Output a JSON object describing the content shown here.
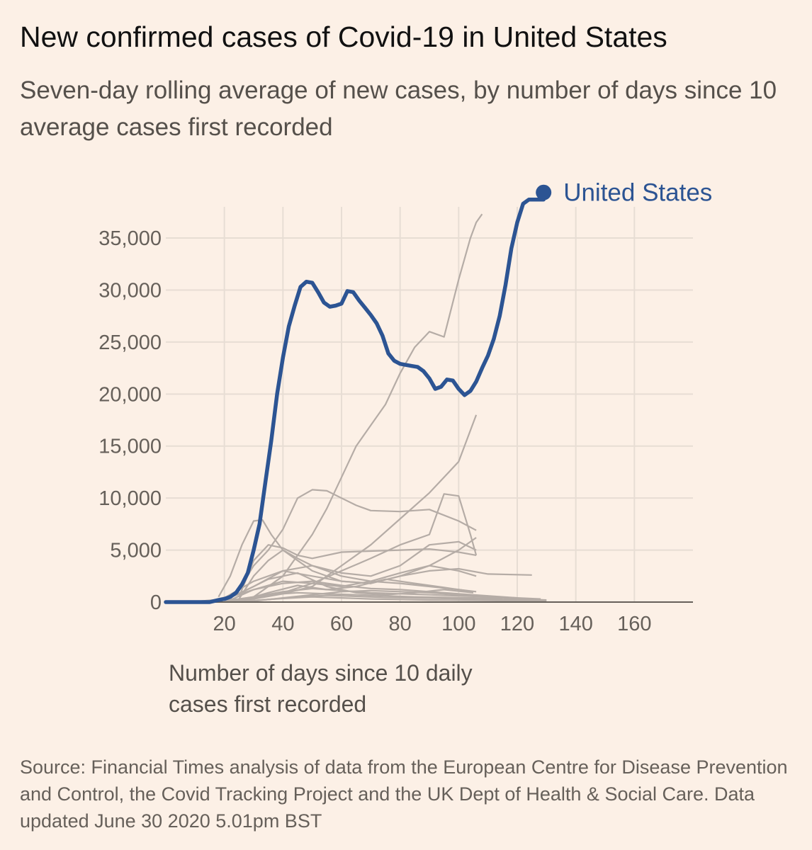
{
  "header": {
    "title": "New confirmed cases of Covid-19 in United States",
    "subtitle": "Seven-day rolling average of new cases, by number of days since 10 average cases first recorded"
  },
  "footer": {
    "source": "Source: Financial Times analysis of data from the European Centre for Disease Prevention and Control, the Covid Tracking Project and the UK Dept of Health & Social Care. Data updated June 30 2020 5.01pm BST"
  },
  "colors": {
    "background": "#fcf0e6",
    "highlight": "#2c5493",
    "other_countries": "#b5aca6",
    "grid": "#e7ddd4",
    "axis": "#66605a"
  },
  "chart_data": {
    "type": "line",
    "title": "New confirmed cases of Covid-19 in United States",
    "subtitle": "Seven-day rolling average of new cases, by number of days since 10 average cases first recorded",
    "xlabel": "Number of days since 10 daily cases first recorded",
    "ylabel": "",
    "xlim": [
      0,
      180
    ],
    "ylim": [
      0,
      38000
    ],
    "xticks": [
      20,
      40,
      60,
      80,
      100,
      120,
      140,
      160
    ],
    "xtick_labels": [
      "20",
      "40",
      "60",
      "80",
      "100",
      "120",
      "140",
      "160"
    ],
    "yticks": [
      0,
      5000,
      10000,
      15000,
      20000,
      25000,
      30000,
      35000
    ],
    "ytick_labels": [
      "0",
      "5,000",
      "10,000",
      "15,000",
      "20,000",
      "25,000",
      "30,000",
      "35,000"
    ],
    "grid": true,
    "highlight": {
      "name": "United States",
      "x": [
        0,
        15,
        18,
        20,
        22,
        24,
        26,
        28,
        30,
        32,
        34,
        36,
        38,
        40,
        42,
        44,
        46,
        48,
        50,
        52,
        54,
        56,
        58,
        60,
        62,
        64,
        66,
        68,
        70,
        72,
        74,
        76,
        78,
        80,
        82,
        84,
        86,
        88,
        90,
        92,
        94,
        96,
        98,
        100,
        102,
        104,
        106,
        108,
        110,
        112,
        114,
        116,
        118,
        120,
        122,
        124,
        126,
        128,
        129
      ],
      "y": [
        0,
        0,
        200,
        300,
        500,
        900,
        1700,
        2800,
        5000,
        7500,
        11500,
        15500,
        20000,
        23500,
        26500,
        28500,
        30300,
        30800,
        30700,
        29800,
        28800,
        28400,
        28500,
        28700,
        29900,
        29800,
        29000,
        28300,
        27600,
        26800,
        25600,
        23900,
        23200,
        22900,
        22800,
        22700,
        22600,
        22200,
        21500,
        20500,
        20700,
        21400,
        21300,
        20500,
        19900,
        20300,
        21200,
        22500,
        23700,
        25300,
        27500,
        30500,
        34000,
        36500,
        38300,
        38700,
        38700,
        38700,
        38700
      ]
    },
    "background_series": [
      {
        "x": [
          30,
          35,
          40,
          45,
          50,
          55,
          60,
          65,
          70,
          75,
          80,
          85,
          90,
          95,
          100,
          104,
          106,
          108
        ],
        "y": [
          500,
          1500,
          2500,
          4500,
          6500,
          9000,
          12000,
          15000,
          17000,
          19000,
          22000,
          24500,
          26000,
          25500,
          31000,
          35000,
          36500,
          37300
        ]
      },
      {
        "x": [
          20,
          30,
          40,
          50,
          55,
          60,
          70,
          80,
          90,
          100,
          106
        ],
        "y": [
          100,
          300,
          800,
          1500,
          2500,
          3500,
          5500,
          8000,
          10500,
          13500,
          18000
        ]
      },
      {
        "x": [
          20,
          25,
          30,
          35,
          40,
          45,
          50,
          55,
          60,
          65,
          70,
          80,
          90,
          100,
          106
        ],
        "y": [
          200,
          1200,
          3500,
          5000,
          7000,
          10000,
          10800,
          10700,
          10000,
          9300,
          8800,
          8700,
          8900,
          7800,
          6900
        ]
      },
      {
        "x": [
          18,
          22,
          26,
          30,
          33,
          36,
          40,
          45,
          50,
          55,
          60,
          70,
          80,
          90,
          100,
          106
        ],
        "y": [
          500,
          2500,
          5500,
          7800,
          7900,
          6500,
          5000,
          4200,
          3500,
          3000,
          2500,
          2000,
          1800,
          1500,
          1200,
          1000
        ]
      },
      {
        "x": [
          20,
          30,
          40,
          50,
          60,
          70,
          80,
          90,
          95,
          100,
          104,
          106
        ],
        "y": [
          100,
          400,
          900,
          1800,
          3000,
          4200,
          5500,
          6500,
          10400,
          10200,
          6500,
          4500
        ]
      },
      {
        "x": [
          25,
          30,
          35,
          40,
          45,
          50,
          60,
          70,
          80,
          90,
          100,
          106
        ],
        "y": [
          500,
          4000,
          5500,
          5200,
          4500,
          4200,
          4800,
          4900,
          5000,
          5100,
          4800,
          4500
        ]
      },
      {
        "x": [
          25,
          30,
          35,
          40,
          45,
          50,
          60,
          70,
          80,
          90,
          100,
          106
        ],
        "y": [
          300,
          2500,
          4000,
          5000,
          4000,
          3000,
          2000,
          1800,
          2500,
          3500,
          5000,
          6200
        ]
      },
      {
        "x": [
          20,
          30,
          40,
          50,
          60,
          70,
          80,
          90,
          100,
          110,
          125
        ],
        "y": [
          200,
          1500,
          3000,
          2500,
          2000,
          1800,
          2500,
          3000,
          3200,
          2700,
          2600
        ]
      },
      {
        "x": [
          20,
          30,
          40,
          50,
          60,
          70,
          80,
          90,
          100,
          106
        ],
        "y": [
          400,
          2000,
          3000,
          3500,
          2800,
          2500,
          3500,
          5500,
          5800,
          5000
        ]
      },
      {
        "x": [
          22,
          30,
          40,
          50,
          60,
          70,
          80,
          90,
          100,
          106
        ],
        "y": [
          200,
          1200,
          2000,
          1800,
          1500,
          2000,
          2800,
          3500,
          3000,
          2500
        ]
      },
      {
        "x": [
          15,
          25,
          35,
          45,
          55,
          65,
          75,
          85,
          95,
          105
        ],
        "y": [
          100,
          800,
          2200,
          2800,
          1500,
          900,
          700,
          900,
          1200,
          900
        ]
      },
      {
        "x": [
          10,
          20,
          30,
          40,
          50,
          60,
          70,
          80,
          90,
          100,
          110,
          120
        ],
        "y": [
          50,
          300,
          1200,
          1800,
          2000,
          1600,
          1300,
          1200,
          1000,
          800,
          600,
          400
        ]
      },
      {
        "x": [
          25,
          35,
          45,
          55,
          65,
          75,
          85,
          95,
          105
        ],
        "y": [
          100,
          900,
          1600,
          1200,
          1500,
          2200,
          1800,
          1400,
          1000
        ]
      },
      {
        "x": [
          20,
          30,
          40,
          50,
          60,
          70,
          80,
          90,
          100,
          110,
          120,
          128
        ],
        "y": [
          50,
          500,
          1000,
          1300,
          1100,
          900,
          800,
          700,
          600,
          500,
          400,
          300
        ]
      },
      {
        "x": [
          15,
          25,
          35,
          45,
          55,
          65,
          75,
          85,
          95,
          105,
          115
        ],
        "y": [
          50,
          300,
          700,
          900,
          800,
          700,
          600,
          500,
          450,
          400,
          350
        ]
      },
      {
        "x": [
          30,
          40,
          50,
          60,
          70,
          80,
          90,
          100,
          110,
          120,
          130
        ],
        "y": [
          100,
          400,
          700,
          1000,
          1100,
          1000,
          900,
          700,
          500,
          300,
          200
        ]
      },
      {
        "x": [
          20,
          30,
          40,
          50,
          60,
          70,
          80,
          90,
          100,
          110,
          120,
          130
        ],
        "y": [
          30,
          150,
          350,
          500,
          400,
          300,
          250,
          200,
          180,
          150,
          120,
          100
        ]
      },
      {
        "x": [
          25,
          35,
          45,
          55,
          65,
          75,
          85,
          95,
          105,
          115,
          125
        ],
        "y": [
          50,
          250,
          500,
          650,
          550,
          450,
          400,
          350,
          300,
          250,
          200
        ]
      }
    ]
  }
}
